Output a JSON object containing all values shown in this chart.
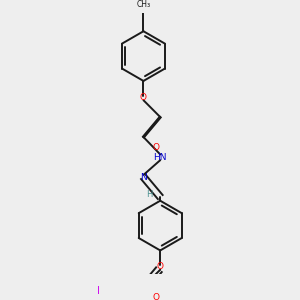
{
  "background_color": "#eeeeee",
  "bond_color": "#1a1a1a",
  "figsize": [
    3.0,
    3.0
  ],
  "dpi": 100,
  "lw": 1.4,
  "r_hex": 0.095,
  "colors": {
    "O": "#ff0000",
    "N": "#0000cc",
    "I": "#cc00ee",
    "H": "#4a9090",
    "C": "#1a1a1a"
  }
}
